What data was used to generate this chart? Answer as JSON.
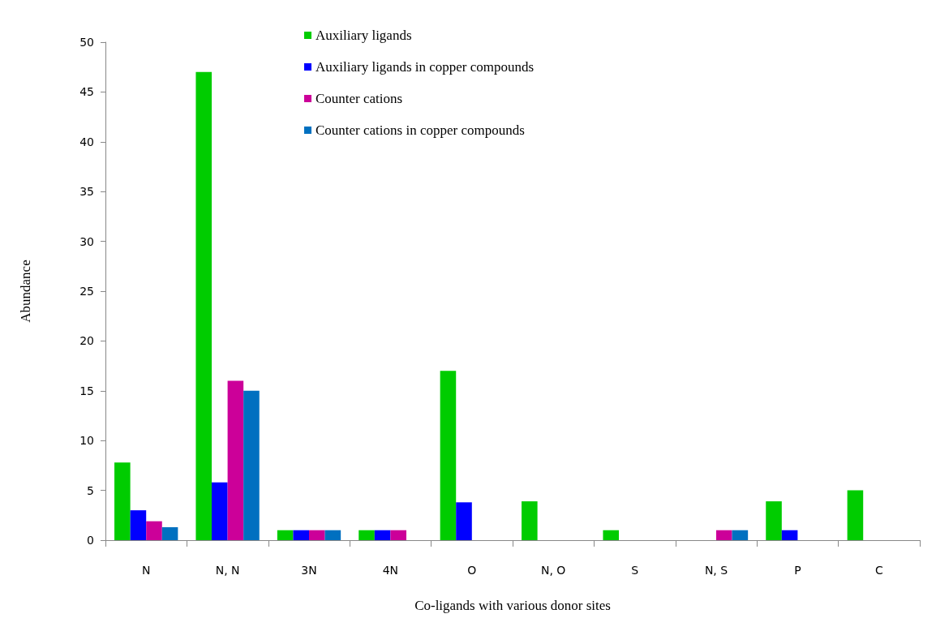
{
  "chart_data": {
    "type": "bar",
    "xlabel": "Co-ligands with various donor sites",
    "ylabel": "Abundance",
    "categories": [
      "N",
      "N, N",
      "3N",
      "4N",
      "O",
      "N, O",
      "S",
      "N, S",
      "P",
      "C"
    ],
    "series": [
      {
        "name": "Auxiliary ligands",
        "color": "#00cc00",
        "values": [
          7.8,
          47,
          1,
          1,
          17,
          3.9,
          1,
          null,
          3.9,
          5
        ]
      },
      {
        "name": "Auxiliary ligands in copper compounds",
        "color": "#0000ff",
        "values": [
          3,
          5.8,
          1,
          1,
          3.8,
          null,
          null,
          null,
          1,
          null
        ]
      },
      {
        "name": "Counter cations",
        "color": "#cc0099",
        "values": [
          1.9,
          16,
          1,
          1,
          null,
          null,
          null,
          1,
          null,
          null
        ]
      },
      {
        "name": "Counter cations in copper compounds",
        "color": "#0070c0",
        "values": [
          1.3,
          15,
          1,
          null,
          null,
          null,
          null,
          1,
          null,
          null
        ]
      }
    ],
    "ylim": [
      0,
      50
    ],
    "yticks": [
      0,
      5,
      10,
      15,
      20,
      25,
      30,
      35,
      40,
      45,
      50
    ],
    "grid": false,
    "legend": "top"
  }
}
